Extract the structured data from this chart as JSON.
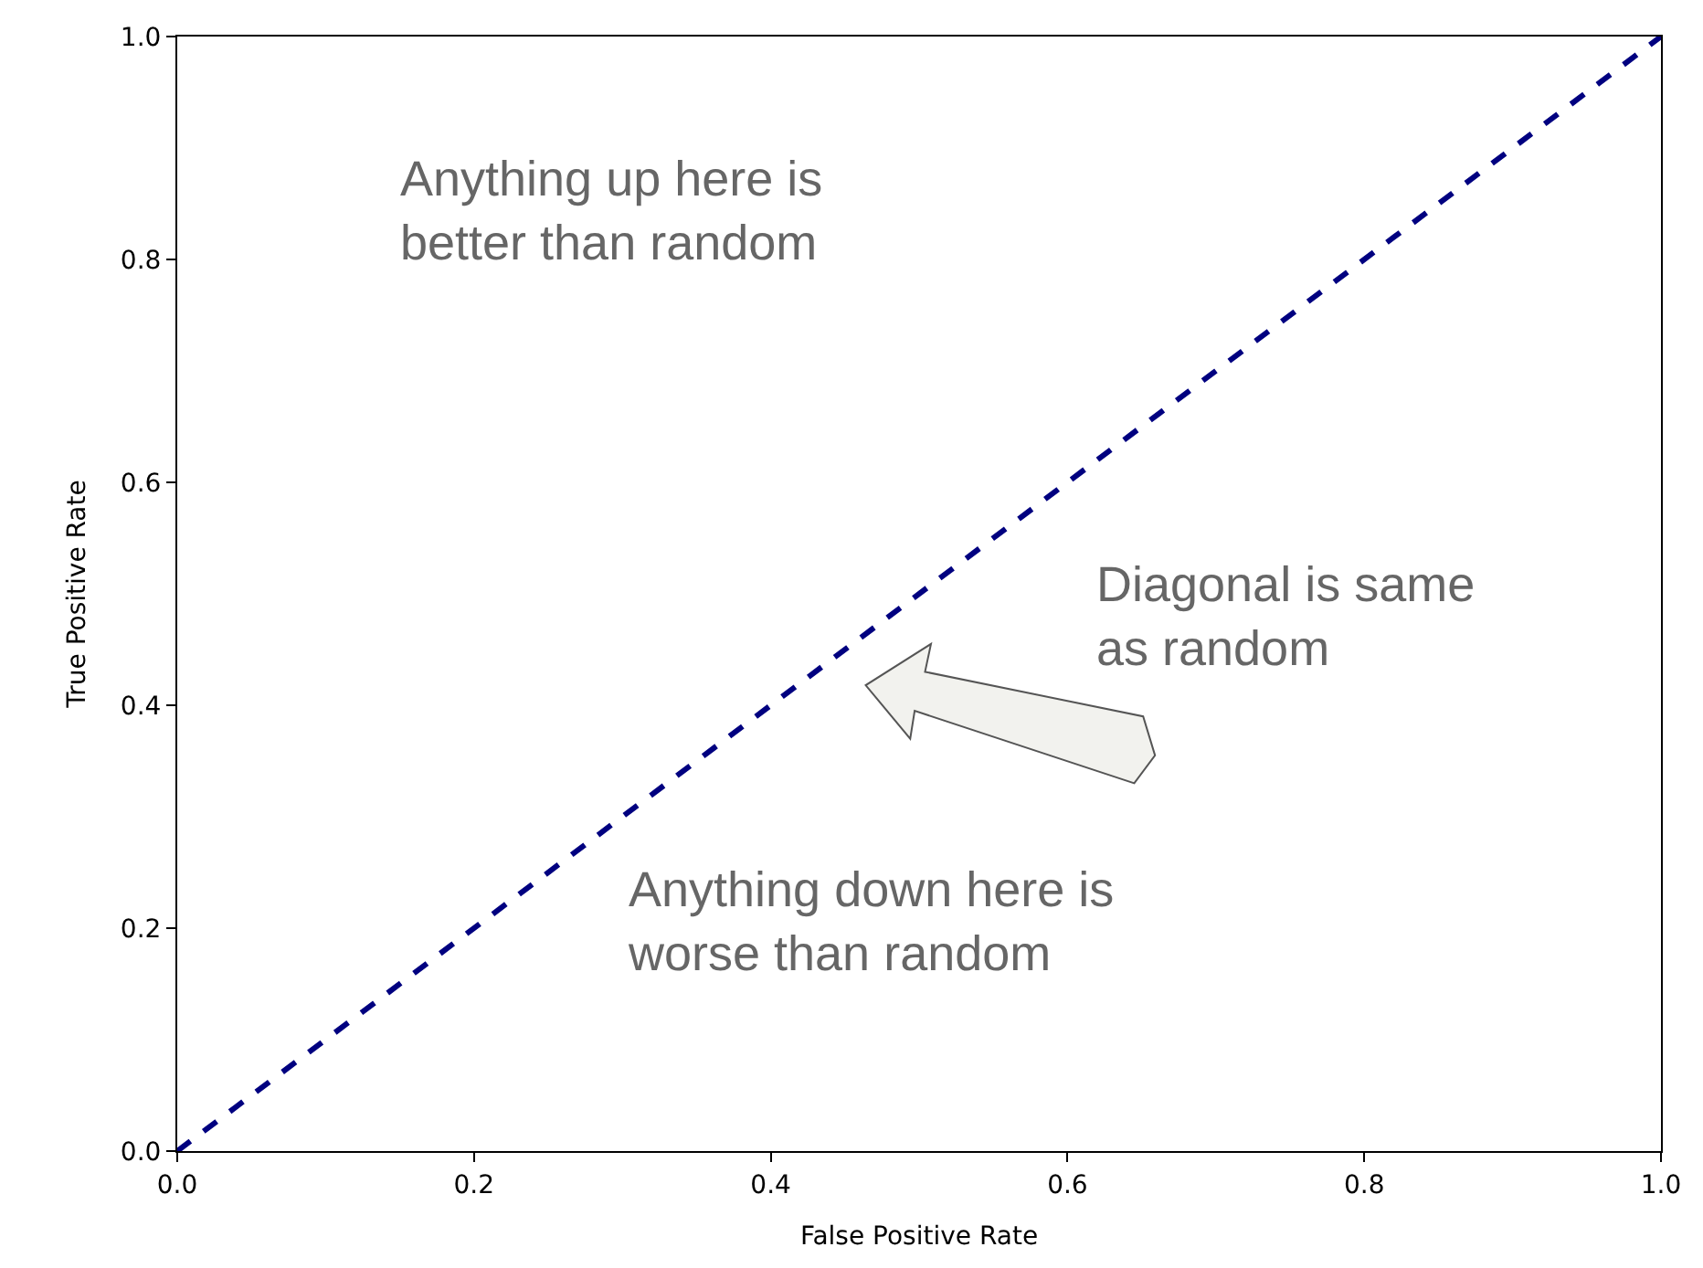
{
  "chart_data": {
    "type": "line",
    "xlabel": "False Positive Rate",
    "ylabel": "True Positive Rate",
    "x": [
      0,
      1
    ],
    "series": [
      {
        "color": "#000080",
        "values": [
          0,
          1
        ],
        "line_style": "dashed"
      }
    ],
    "xlim": [
      0,
      1
    ],
    "ylim": [
      0,
      1
    ],
    "xticks": [
      {
        "value": 0,
        "label": "0.0"
      },
      {
        "value": 0.2,
        "label": "0.2"
      },
      {
        "value": 0.4,
        "label": "0.4"
      },
      {
        "value": 0.6,
        "label": "0.6"
      },
      {
        "value": 0.8,
        "label": "0.8"
      },
      {
        "value": 1,
        "label": "1.0"
      }
    ],
    "yticks": [
      {
        "value": 0,
        "label": "0.0"
      },
      {
        "value": 0.2,
        "label": "0.2"
      },
      {
        "value": 0.4,
        "label": "0.4"
      },
      {
        "value": 0.6,
        "label": "0.6"
      },
      {
        "value": 0.8,
        "label": "0.8"
      },
      {
        "value": 1,
        "label": "1.0"
      }
    ],
    "marker": "none",
    "annotations": [
      "Anything up here is\nbetter than random",
      "Diagonal is same\nas random",
      "Anything down here is\nworse than random"
    ]
  }
}
